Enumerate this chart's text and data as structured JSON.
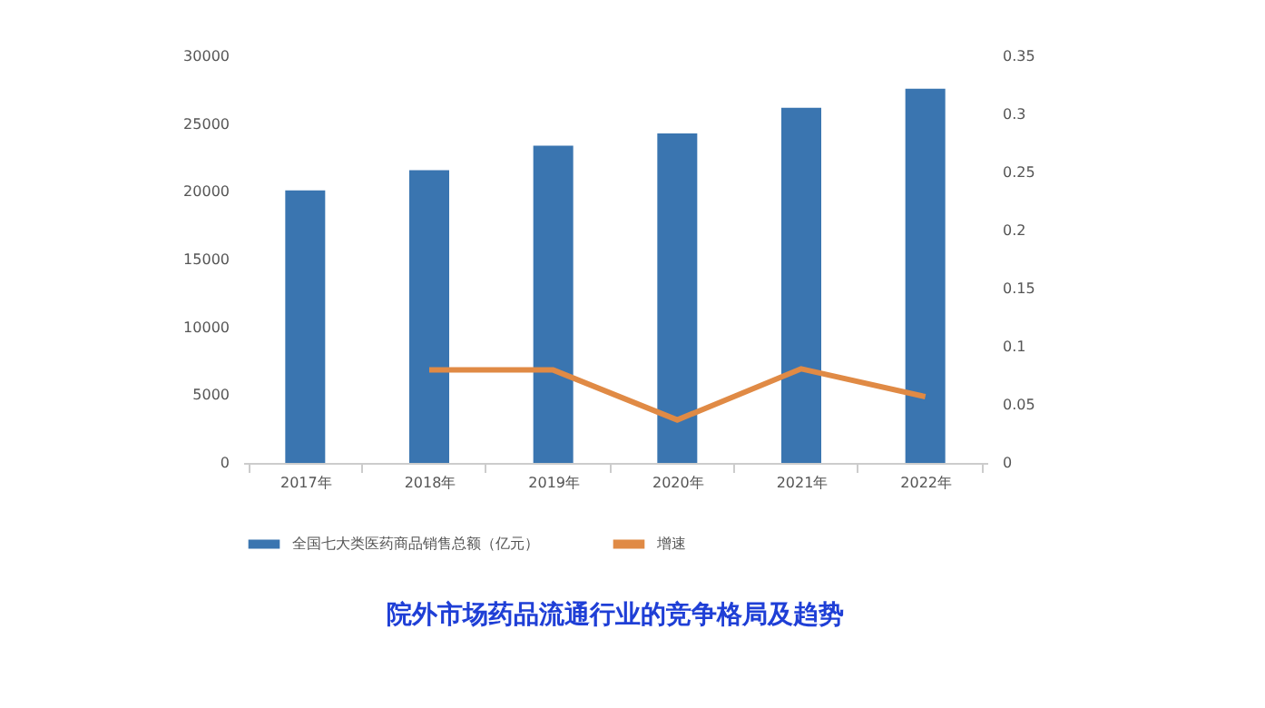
{
  "chart_data": {
    "type": "bar",
    "title": "院外市场药品流通行业的竞争格局及趋势",
    "categories": [
      "2017年",
      "2018年",
      "2019年",
      "2020年",
      "2021年",
      "2022年"
    ],
    "series": [
      {
        "name": "全国七大类医药商品销售总额（亿元）",
        "color": "#3a75b0",
        "values": [
          20100,
          21600,
          23400,
          24300,
          26200,
          27600
        ]
      },
      {
        "name": "增速",
        "type": "line",
        "axis": "y2",
        "color": "#e08a45",
        "values": [
          null,
          0.08,
          0.08,
          0.037,
          0.081,
          0.057
        ]
      }
    ],
    "ylim": [
      0,
      30000
    ],
    "yticks": [
      0,
      5000,
      10000,
      15000,
      20000,
      25000,
      30000
    ],
    "y2lim": [
      0,
      0.35
    ],
    "y2ticks": [
      0,
      0.05,
      0.1,
      0.15,
      0.2,
      0.25,
      0.3,
      0.35
    ],
    "grid": false,
    "legend": "bottom"
  }
}
